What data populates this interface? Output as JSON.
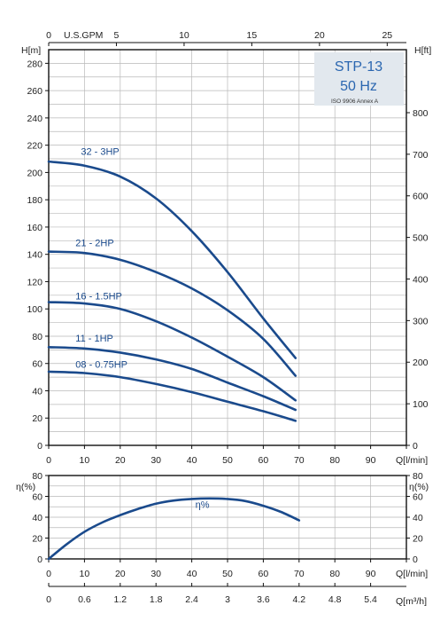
{
  "chart_data": [
    {
      "type": "line",
      "name": "head-curves",
      "title": "STP-13",
      "subtitle": "50 Hz",
      "note": "ISO 9906 Annex A",
      "xlabel": "Q[l/min]",
      "ylabel_left": "H[m]",
      "ylabel_right": "H[ft]",
      "top_axis_label": "U.S.GPM",
      "xlim": [
        0,
        100
      ],
      "ylim": [
        0,
        290
      ],
      "x_ticks": [
        0,
        10,
        20,
        30,
        40,
        50,
        60,
        70,
        80,
        90,
        100
      ],
      "x_tick_labels": [
        "0",
        "10",
        "20",
        "30",
        "40",
        "50",
        "60",
        "70",
        "80",
        "90",
        "Q[l/min]"
      ],
      "y_ticks": [
        0,
        20,
        40,
        60,
        80,
        100,
        120,
        140,
        160,
        180,
        200,
        220,
        240,
        260,
        280
      ],
      "y_tick_labels": [
        "0",
        "20",
        "40",
        "60",
        "80",
        "100",
        "120",
        "140",
        "160",
        "180",
        "200",
        "220",
        "240",
        "260",
        "280"
      ],
      "right_ticks_ft": [
        0,
        100,
        200,
        300,
        400,
        500,
        600,
        700,
        800
      ],
      "right_tick_labels": [
        "0",
        "100",
        "200",
        "300",
        "400",
        "500",
        "600",
        "700",
        "800"
      ],
      "top_ticks_gpm": [
        0,
        5,
        10,
        15,
        20,
        25
      ],
      "top_tick_labels": [
        "0",
        "5",
        "10",
        "15",
        "20",
        "25"
      ],
      "grid": true,
      "series": [
        {
          "name": "32 - 3HP",
          "label_at": [
            9,
            213
          ],
          "x": [
            0,
            10,
            20,
            30,
            40,
            50,
            60,
            69
          ],
          "y": [
            208,
            205,
            197,
            181,
            157,
            127,
            93,
            64
          ]
        },
        {
          "name": "21 - 2HP",
          "label_at": [
            7.5,
            146
          ],
          "x": [
            0,
            10,
            20,
            30,
            40,
            50,
            60,
            69
          ],
          "y": [
            142,
            141,
            136,
            127,
            115,
            99,
            78,
            51
          ]
        },
        {
          "name": "16 - 1.5HP",
          "label_at": [
            7.5,
            107
          ],
          "x": [
            0,
            10,
            20,
            30,
            40,
            50,
            60,
            69
          ],
          "y": [
            105,
            104,
            100,
            91,
            79,
            65,
            50,
            33
          ]
        },
        {
          "name": "11 - 1HP",
          "label_at": [
            7.5,
            76
          ],
          "x": [
            0,
            10,
            20,
            30,
            40,
            50,
            60,
            69
          ],
          "y": [
            72,
            71,
            68,
            63,
            56,
            46,
            36,
            26
          ]
        },
        {
          "name": "08 - 0.75HP",
          "label_at": [
            7.5,
            57
          ],
          "x": [
            0,
            10,
            20,
            30,
            40,
            50,
            60,
            69
          ],
          "y": [
            54,
            53,
            50,
            45,
            39,
            32,
            25,
            18
          ]
        }
      ]
    },
    {
      "type": "line",
      "name": "efficiency-curve",
      "xlabel": "Q[l/min]",
      "ylabel_left": "η(%)",
      "ylabel_right": "η(%)",
      "bottom_axis_label": "Q[m³/h]",
      "xlim": [
        0,
        100
      ],
      "ylim": [
        0,
        80
      ],
      "x_ticks": [
        0,
        10,
        20,
        30,
        40,
        50,
        60,
        70,
        80,
        90,
        100
      ],
      "x_tick_labels": [
        "0",
        "10",
        "20",
        "30",
        "40",
        "50",
        "60",
        "70",
        "80",
        "90",
        "Q[l/min]"
      ],
      "y_ticks": [
        0,
        20,
        40,
        60,
        80
      ],
      "y_tick_labels": [
        "0",
        "20",
        "40",
        "60",
        "80"
      ],
      "m3h_ticks": [
        0,
        0.6,
        1.2,
        1.8,
        2.4,
        3,
        3.6,
        4.2,
        4.8,
        5.4
      ],
      "m3h_tick_labels": [
        "0",
        "0.6",
        "1.2",
        "1.8",
        "2.4",
        "3",
        "3.6",
        "4.2",
        "4.8",
        "5.4"
      ],
      "grid": true,
      "series": [
        {
          "name": "η%",
          "label_at": [
            41,
            49
          ],
          "x": [
            0,
            5,
            10,
            15,
            20,
            25,
            30,
            35,
            40,
            45,
            50,
            55,
            60,
            65,
            70
          ],
          "y": [
            0,
            14,
            26,
            35,
            42,
            48,
            53,
            56,
            57.5,
            58,
            57.5,
            55.5,
            51,
            45,
            37
          ]
        }
      ]
    }
  ]
}
